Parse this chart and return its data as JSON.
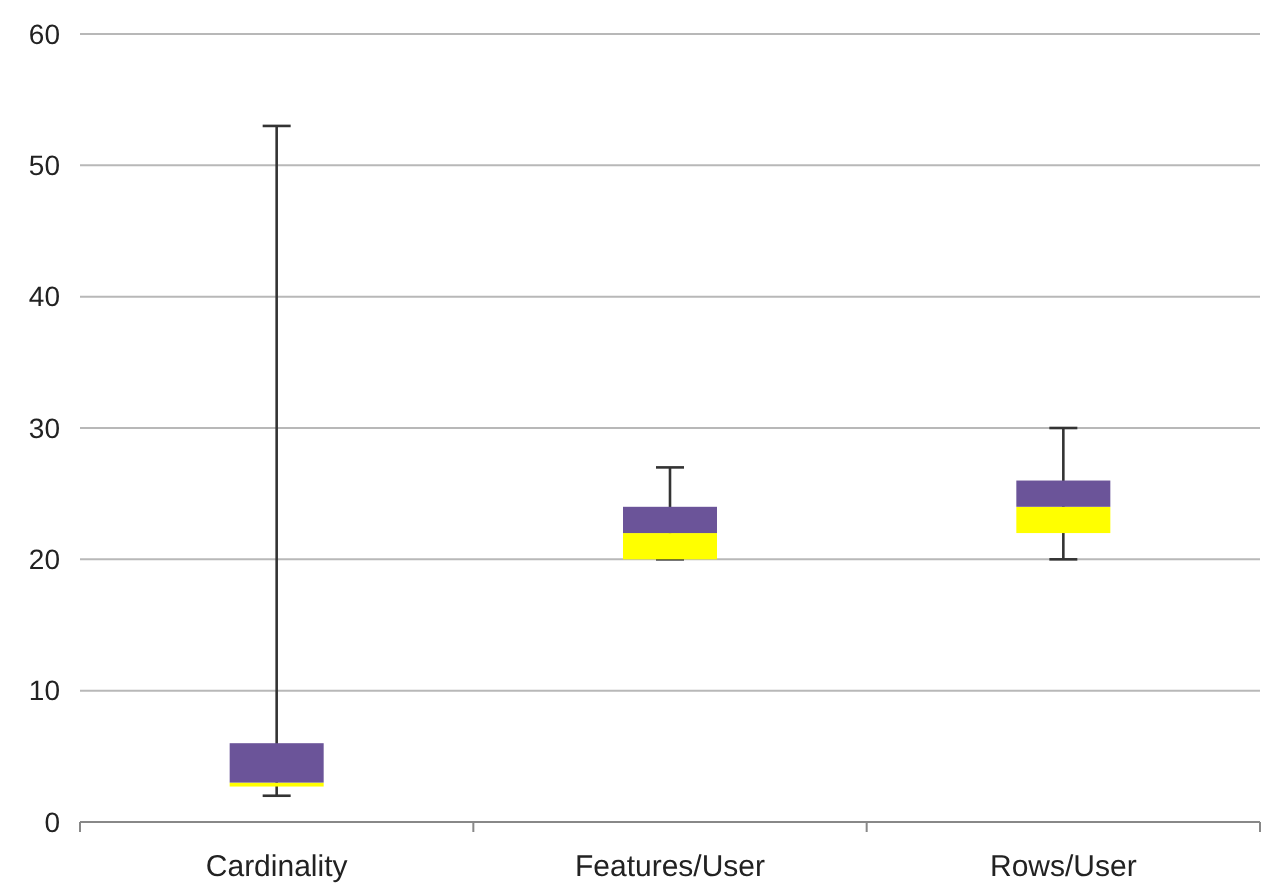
{
  "chart_data": {
    "type": "box",
    "categories": [
      "Cardinality",
      "Features/User",
      "Rows/User"
    ],
    "series": [
      {
        "color": "#ffff00",
        "boxes": [
          {
            "low": 2,
            "q1": 2.7,
            "median": 3,
            "q3": 6,
            "high": 53
          },
          {
            "low": 20,
            "q1": 20,
            "median": 22,
            "q3": 24,
            "high": 27
          },
          {
            "low": 20,
            "q1": 22,
            "median": 24,
            "q3": 26,
            "high": 30
          }
        ]
      }
    ],
    "colors": [
      "#6b5499",
      "#6b5499",
      "#6b5499"
    ],
    "ylim": [
      0,
      60
    ],
    "yticks": [
      0,
      10,
      20,
      30,
      40,
      50,
      60
    ],
    "grid": "y"
  }
}
